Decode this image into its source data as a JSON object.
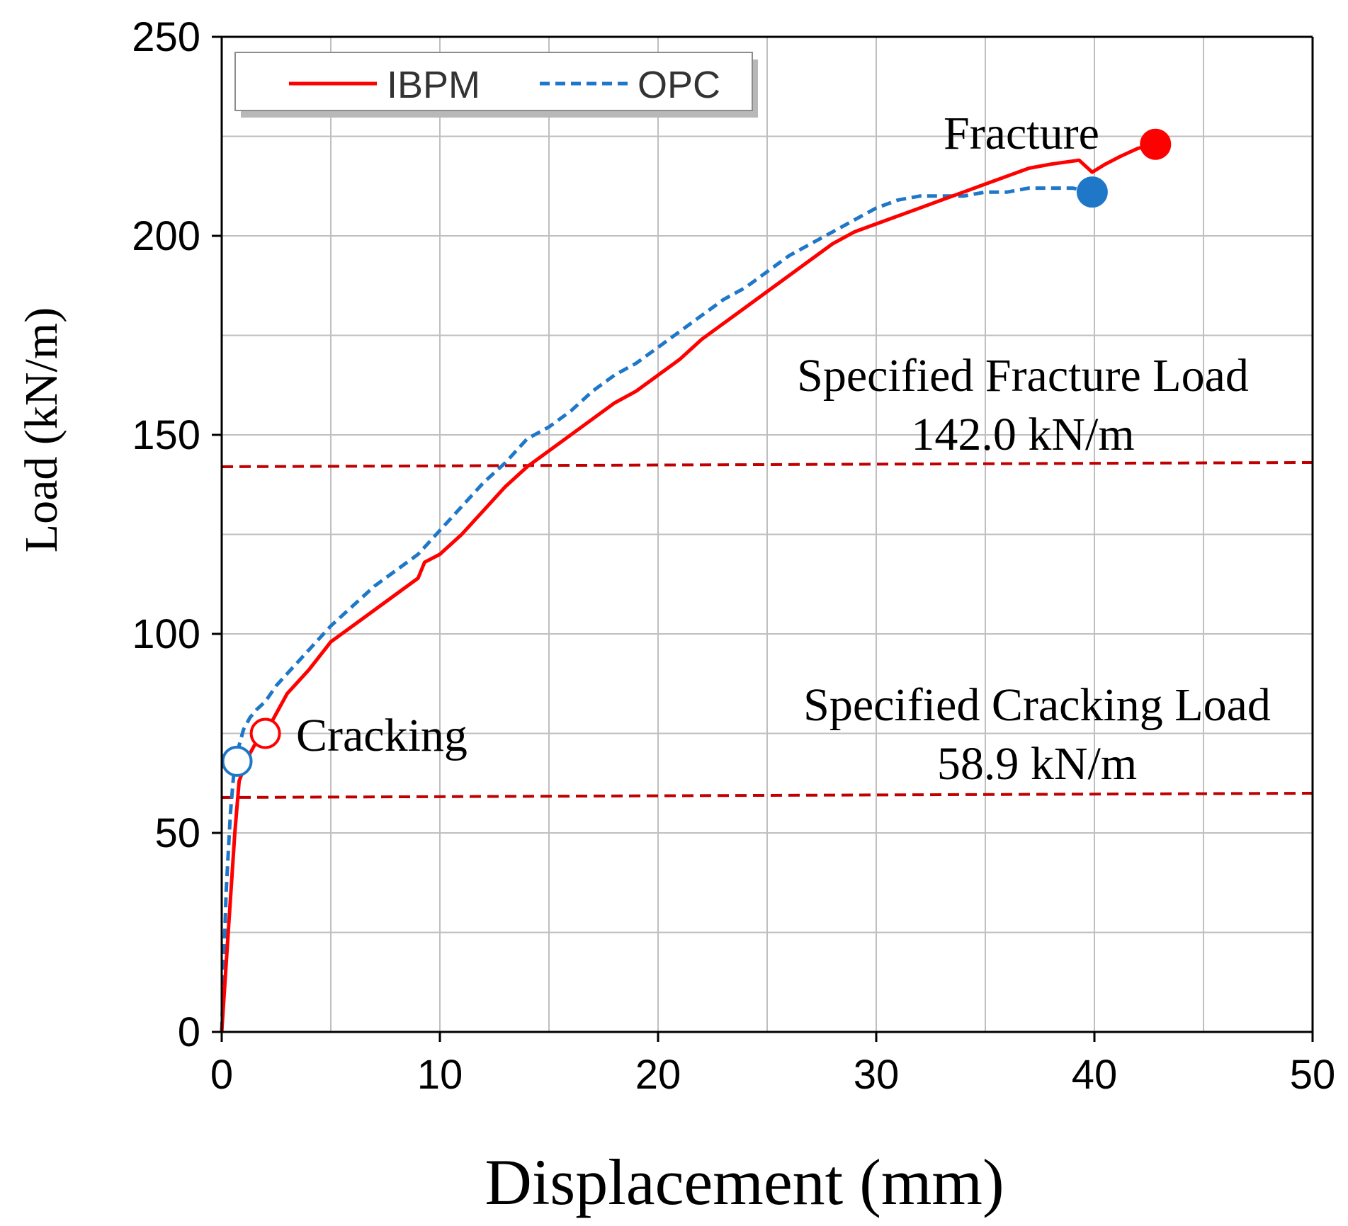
{
  "chart_data": {
    "type": "line",
    "title": "",
    "xlabel": "Displacement (mm)",
    "ylabel": "Load (kN/m)",
    "xlim": [
      0,
      50
    ],
    "ylim": [
      0,
      250
    ],
    "x_ticks": [
      "0",
      "10",
      "20",
      "30",
      "40",
      "50"
    ],
    "y_ticks": [
      "0",
      "50",
      "100",
      "150",
      "200",
      "250"
    ],
    "grid": true,
    "legend_position": "top-left",
    "series": [
      {
        "name": "IBPM",
        "color": "#ff0000",
        "style": "solid",
        "x": [
          0,
          0.3,
          0.6,
          0.8,
          1.0,
          1.3,
          1.6,
          2.0,
          2.5,
          3.0,
          4.0,
          5.0,
          5.5,
          6.0,
          7.0,
          8.0,
          9.0,
          9.3,
          10.0,
          11.0,
          12.0,
          13.0,
          14.0,
          15.0,
          16.0,
          17.0,
          18.0,
          19.0,
          20.0,
          21.0,
          22.0,
          23.0,
          24.0,
          25.0,
          26.0,
          27.0,
          28.0,
          29.0,
          30.0,
          31.0,
          32.0,
          33.0,
          34.0,
          35.0,
          36.0,
          37.0,
          38.0,
          39.3,
          39.9,
          40.5,
          41.2,
          42.0,
          42.8
        ],
        "y": [
          0,
          25,
          50,
          63,
          66,
          70,
          73,
          75,
          80,
          85,
          91,
          98,
          100,
          102,
          106,
          110,
          114,
          118,
          120,
          125,
          131,
          137,
          142,
          146,
          150,
          154,
          158,
          161,
          165,
          169,
          174,
          178,
          182,
          186,
          190,
          194,
          198,
          201,
          203,
          205,
          207,
          209,
          211,
          213,
          215,
          217,
          218,
          219,
          216,
          218,
          220,
          222,
          223
        ]
      },
      {
        "name": "OPC",
        "color": "#1f77c8",
        "style": "dashed",
        "x": [
          0,
          0.2,
          0.4,
          0.6,
          0.8,
          1.0,
          1.3,
          1.6,
          2.0,
          2.5,
          3.0,
          4.0,
          5.0,
          6.0,
          7.0,
          8.0,
          9.0,
          10.0,
          11.0,
          12.0,
          13.0,
          14.0,
          15.0,
          16.0,
          17.0,
          18.0,
          19.0,
          20.0,
          21.0,
          22.0,
          23.0,
          24.0,
          25.0,
          26.0,
          27.0,
          28.0,
          29.0,
          30.0,
          31.0,
          32.0,
          33.0,
          34.0,
          35.0,
          36.0,
          37.0,
          38.0,
          39.0,
          39.9
        ],
        "y": [
          0,
          35,
          55,
          68,
          72,
          76,
          79,
          81,
          83,
          87,
          90,
          96,
          102,
          107,
          112,
          116,
          120,
          126,
          132,
          138,
          143,
          149,
          152,
          156,
          161,
          165,
          168,
          172,
          176,
          180,
          184,
          187,
          191,
          195,
          198,
          201,
          204,
          207,
          209,
          210,
          210,
          210,
          211,
          211,
          212,
          212,
          212,
          211
        ]
      }
    ],
    "reference_lines": [
      {
        "name": "Specified Fracture Load",
        "value": 142.0,
        "label_line1": "Specified Fracture Load",
        "label_line2": "142.0 kN/m"
      },
      {
        "name": "Specified Cracking Load",
        "value": 58.9,
        "label_line1": "Specified Cracking Load",
        "label_line2": "58.9 kN/m"
      }
    ],
    "markers": [
      {
        "series": "IBPM",
        "event": "Cracking",
        "x": 2.0,
        "y": 75,
        "filled": false
      },
      {
        "series": "OPC",
        "event": "Cracking",
        "x": 0.7,
        "y": 68,
        "filled": false
      },
      {
        "series": "IBPM",
        "event": "Fracture",
        "x": 42.8,
        "y": 223,
        "filled": true
      },
      {
        "series": "OPC",
        "event": "Fracture",
        "x": 39.9,
        "y": 211,
        "filled": true
      }
    ],
    "annotations": {
      "cracking": "Cracking",
      "fracture": "Fracture"
    },
    "reference_line_color": "#c00000"
  }
}
